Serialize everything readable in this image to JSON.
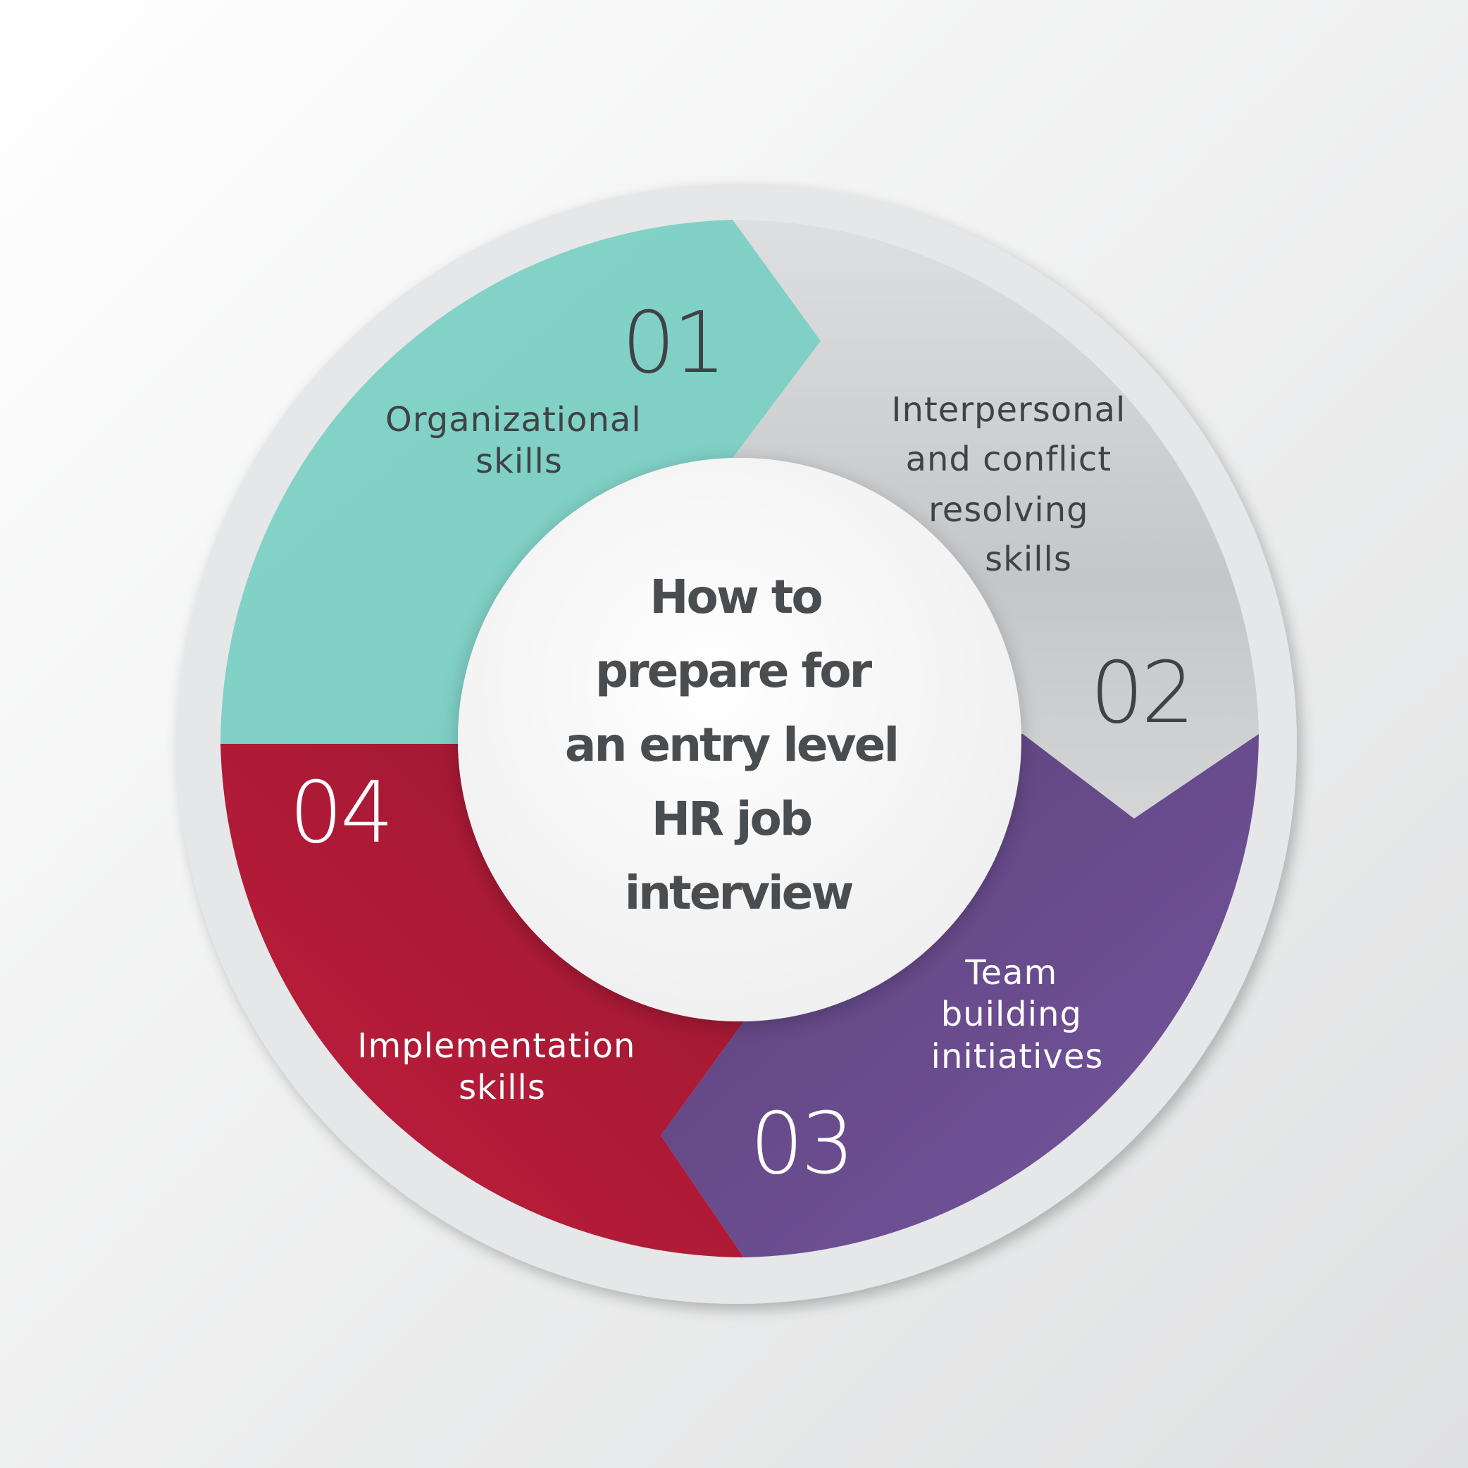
{
  "title_lines": [
    "How to",
    "prepare for",
    "an entry level",
    "HR job",
    "interview"
  ],
  "segments": [
    {
      "number": "01",
      "label_lines": [
        "Organizational",
        "skills"
      ],
      "color": "#82d1c7",
      "text_color": "#3f4346"
    },
    {
      "number": "02",
      "label_lines": [
        "Interpersonal",
        "and conflict",
        "resolving",
        "skills"
      ],
      "color": "#c9cbcc",
      "text_color": "#3f4346"
    },
    {
      "number": "03",
      "label_lines": [
        "Team",
        "building",
        "initiatives"
      ],
      "color": "#6f4f91",
      "text_color": "#ffffff"
    },
    {
      "number": "04",
      "label_lines": [
        "Implementation",
        "skills"
      ],
      "color": "#b81c3a",
      "text_color": "#ffffff"
    }
  ],
  "colors": {
    "background": "#f1f1f1",
    "outer_ring": "#e6e7e8",
    "center_disc": "#f4f4f4",
    "title_text": "#4a4d50"
  }
}
